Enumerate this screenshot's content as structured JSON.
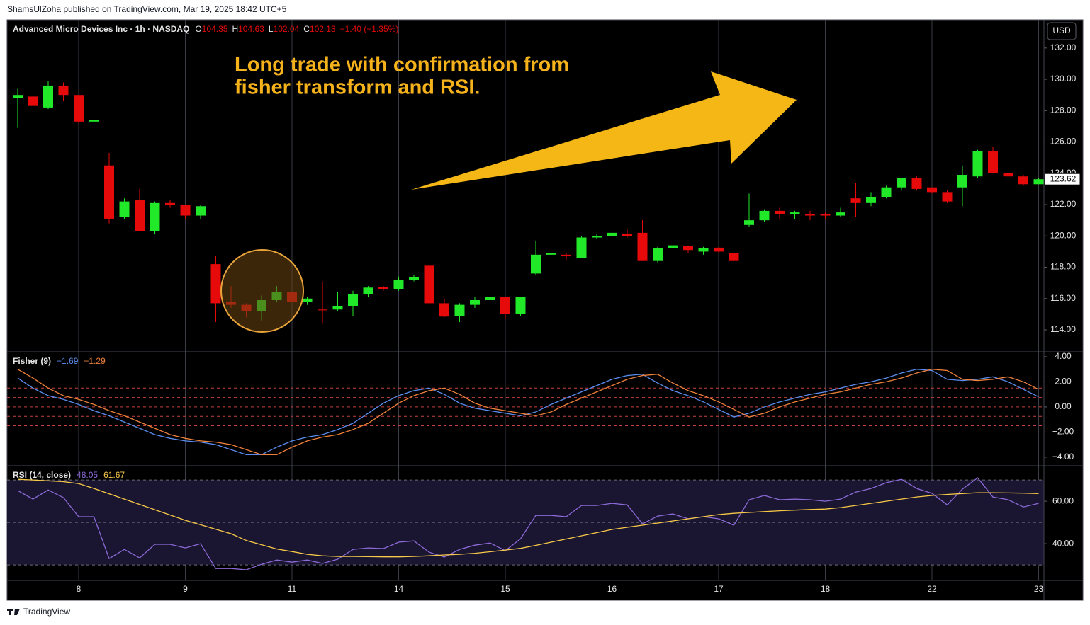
{
  "header": {
    "publisher": "ShamsUlZoha published on TradingView.com, Mar 19, 2025 18:42 UTC+5"
  },
  "footer": {
    "brand": "TradingView"
  },
  "annotation": {
    "lines": [
      "Long trade with confirmation from",
      "fisher transform and RSI."
    ],
    "color": "#f5b21b"
  },
  "chart_data": [
    {
      "type": "candlestick",
      "title": "Advanced Micro Devices Inc · 1h · NASDAQ",
      "quote": [
        {
          "label": "O",
          "value": 104.35
        },
        {
          "label": "H",
          "value": 104.63
        },
        {
          "label": "L",
          "value": 102.04
        },
        {
          "label": "C",
          "value": 102.13
        }
      ],
      "change": "−1.40 (−1.35%)",
      "currency": "USD",
      "up_color": "#22e82a",
      "down_color": "#e60a0a",
      "open": [
        128.8,
        128.9,
        128.2,
        129.6,
        129.0,
        127.3,
        124.5,
        121.2,
        122.3,
        120.3,
        122.1,
        122.0,
        121.3,
        118.2,
        115.8,
        115.6,
        115.2,
        115.9,
        116.4,
        115.8,
        115.3,
        115.3,
        115.5,
        116.3,
        116.75,
        116.6,
        117.2,
        118.1,
        115.7,
        114.9,
        115.6,
        115.9,
        116.1,
        115.0,
        117.6,
        118.8,
        118.8,
        118.6,
        119.9,
        120.0,
        120.15,
        120.2,
        118.4,
        119.2,
        119.35,
        119.0,
        119.25,
        118.9,
        120.7,
        121.0,
        121.6,
        121.4,
        121.4,
        121.4,
        121.3,
        122.4,
        122.1,
        122.5,
        123.1,
        123.7,
        123.1,
        122.8,
        123.1,
        123.8,
        125.4,
        124.0,
        123.8,
        123.3
      ],
      "high": [
        129.4,
        129.0,
        129.9,
        129.8,
        129.0,
        127.7,
        125.3,
        122.4,
        123.0,
        122.2,
        122.3,
        122.0,
        122.0,
        118.7,
        116.8,
        115.7,
        116.2,
        116.8,
        116.4,
        116.1,
        117.1,
        116.4,
        116.5,
        116.8,
        116.8,
        117.4,
        117.5,
        118.6,
        116.0,
        115.7,
        116.1,
        116.4,
        116.1,
        116.1,
        119.7,
        119.3,
        118.9,
        120.0,
        120.1,
        120.3,
        120.4,
        121.0,
        119.3,
        119.5,
        119.4,
        119.3,
        119.3,
        119.0,
        122.7,
        121.7,
        121.8,
        121.6,
        121.6,
        121.5,
        121.8,
        123.4,
        122.8,
        123.2,
        123.7,
        123.8,
        123.1,
        122.9,
        124.5,
        125.5,
        125.7,
        124.2,
        123.9,
        123.7
      ],
      "low": [
        126.9,
        128.2,
        128.1,
        128.6,
        127.2,
        126.9,
        120.8,
        121.1,
        120.3,
        120.1,
        121.8,
        121.1,
        121.1,
        114.5,
        115.4,
        114.8,
        114.6,
        115.8,
        115.8,
        115.6,
        114.4,
        115.2,
        114.9,
        116.1,
        116.5,
        116.5,
        117.1,
        115.6,
        114.8,
        114.5,
        115.4,
        115.8,
        114.7,
        114.9,
        117.5,
        118.6,
        118.5,
        118.6,
        119.8,
        119.9,
        119.9,
        118.4,
        118.3,
        118.9,
        118.9,
        118.8,
        118.9,
        118.3,
        120.6,
        120.9,
        121.1,
        121.1,
        121.0,
        121.1,
        121.2,
        121.2,
        121.9,
        122.4,
        122.9,
        122.9,
        122.7,
        122.1,
        121.9,
        123.7,
        124.0,
        123.4,
        123.2,
        123.3
      ],
      "close": [
        129.0,
        128.3,
        129.6,
        129.0,
        127.3,
        127.4,
        121.1,
        122.2,
        120.3,
        122.1,
        122.0,
        121.3,
        121.9,
        115.7,
        115.6,
        115.2,
        115.9,
        116.4,
        115.8,
        116.0,
        115.25,
        115.5,
        116.3,
        116.7,
        116.6,
        117.2,
        117.35,
        115.7,
        114.85,
        115.6,
        115.9,
        116.1,
        115.0,
        116.1,
        118.8,
        118.9,
        118.7,
        119.9,
        120.0,
        120.2,
        120.0,
        118.4,
        119.2,
        119.4,
        119.1,
        119.2,
        119.0,
        118.4,
        121.0,
        121.6,
        121.4,
        121.5,
        121.3,
        121.3,
        121.5,
        122.1,
        122.5,
        123.1,
        123.7,
        123.0,
        122.8,
        122.2,
        123.9,
        125.4,
        124.0,
        123.8,
        123.3,
        123.62
      ],
      "last_price": 123.62,
      "ylim": [
        112.6,
        133.8
      ],
      "yticks": [
        {
          "value": 114,
          "label": "114.00"
        },
        {
          "value": 116,
          "label": "116.00"
        },
        {
          "value": 118,
          "label": "118.00"
        },
        {
          "value": 120,
          "label": "120.00"
        },
        {
          "value": 122,
          "label": "122.00"
        },
        {
          "value": 124,
          "label": "124.00"
        },
        {
          "value": 126,
          "label": "126.00"
        },
        {
          "value": 128,
          "label": "128.00"
        },
        {
          "value": 130,
          "label": "130.00"
        },
        {
          "value": 132,
          "label": "132.00"
        }
      ],
      "xticks": [
        {
          "value": 4,
          "label": "8"
        },
        {
          "value": 11,
          "label": "9"
        },
        {
          "value": 18,
          "label": "11"
        },
        {
          "value": 25,
          "label": "14"
        },
        {
          "value": 32,
          "label": "15"
        },
        {
          "value": 39,
          "label": "16"
        },
        {
          "value": 46,
          "label": "17"
        },
        {
          "value": 53,
          "label": "18"
        },
        {
          "value": 60,
          "label": "22"
        },
        {
          "value": 67,
          "label": "23"
        }
      ],
      "grid": true
    },
    {
      "type": "line",
      "title": "Fisher (9)",
      "series": [
        {
          "color": "#5b8def",
          "legend_value": "−1.69",
          "values": [
            2.3,
            1.5,
            0.9,
            0.6,
            0.2,
            -0.3,
            -0.7,
            -1.2,
            -1.7,
            -2.2,
            -2.5,
            -2.7,
            -2.8,
            -3.0,
            -3.4,
            -3.8,
            -3.8,
            -3.2,
            -2.7,
            -2.4,
            -2.2,
            -1.8,
            -1.3,
            -0.5,
            0.3,
            0.9,
            1.3,
            1.5,
            1.0,
            0.3,
            -0.1,
            -0.3,
            -0.5,
            -0.7,
            -0.4,
            0.2,
            0.7,
            1.2,
            1.7,
            2.2,
            2.5,
            2.6,
            1.9,
            1.3,
            0.9,
            0.4,
            -0.2,
            -0.8,
            -0.5,
            0.0,
            0.4,
            0.7,
            1.0,
            1.2,
            1.5,
            1.8,
            2.0,
            2.3,
            2.7,
            3.0,
            2.9,
            2.2,
            2.1,
            2.2,
            2.4,
            2.0,
            1.4,
            0.8
          ]
        },
        {
          "color": "#f0813a",
          "legend_value": "−1.29",
          "values": [
            3.0,
            2.3,
            1.5,
            0.9,
            0.6,
            0.2,
            -0.3,
            -0.7,
            -1.2,
            -1.7,
            -2.2,
            -2.5,
            -2.7,
            -2.8,
            -3.0,
            -3.4,
            -3.8,
            -3.8,
            -3.2,
            -2.7,
            -2.4,
            -2.2,
            -1.8,
            -1.3,
            -0.5,
            0.3,
            0.9,
            1.3,
            1.5,
            1.0,
            0.3,
            -0.1,
            -0.3,
            -0.5,
            -0.7,
            -0.4,
            0.2,
            0.7,
            1.2,
            1.7,
            2.2,
            2.5,
            2.6,
            1.9,
            1.3,
            0.9,
            0.4,
            -0.2,
            -0.8,
            -0.5,
            0.0,
            0.4,
            0.7,
            1.0,
            1.2,
            1.5,
            1.8,
            2.0,
            2.3,
            2.7,
            3.0,
            2.9,
            2.2,
            2.1,
            2.2,
            2.4,
            2.0,
            1.4
          ]
        }
      ],
      "levels": [
        1.5,
        0.75,
        0,
        -0.75,
        -1.5
      ],
      "level_color": "#c8403f",
      "ylim": [
        -4.68,
        4.39
      ],
      "yticks": [
        {
          "value": 4,
          "label": "4.00"
        },
        {
          "value": 2,
          "label": "2.00"
        },
        {
          "value": 0,
          "label": "0.00"
        },
        {
          "value": -2,
          "label": "−2.00"
        },
        {
          "value": -4,
          "label": "−4.00"
        }
      ]
    },
    {
      "type": "line",
      "title": "RSI (14, close)",
      "series": [
        {
          "color": "#8c6ad8",
          "legend_value": "48.05",
          "values": [
            65,
            61,
            65.3,
            61.7,
            52.7,
            52.7,
            33,
            37.3,
            33.3,
            39.7,
            39.7,
            38,
            40,
            28.3,
            28.3,
            27.7,
            30.3,
            32.3,
            31.3,
            32.3,
            30.7,
            32.7,
            37.3,
            38,
            37.7,
            40.7,
            41.3,
            36,
            33.7,
            37.3,
            39.3,
            40.3,
            36.7,
            42.3,
            53.3,
            53.3,
            52.7,
            58,
            58,
            59,
            58.3,
            49.3,
            53,
            54,
            51.7,
            52.7,
            51.7,
            48.7,
            60.7,
            62.7,
            60.7,
            61,
            60.7,
            60,
            61,
            64.3,
            66,
            68.7,
            70.3,
            66,
            63.7,
            58.3,
            65.7,
            71,
            62,
            60.7,
            57.3,
            59
          ]
        },
        {
          "color": "#f7c948",
          "legend_value": "61.67",
          "values": [
            70.3,
            70.0,
            69.6,
            69.2,
            68.3,
            66.0,
            63.5,
            61.0,
            58.5,
            56.0,
            53.5,
            51.0,
            48.9,
            46.8,
            44.7,
            41.5,
            39.5,
            37.5,
            36.3,
            35.0,
            34.3,
            34.0,
            34.0,
            33.9,
            33.8,
            33.8,
            34.0,
            34.3,
            34.7,
            35.0,
            35.5,
            36.2,
            37.0,
            37.8,
            39.2,
            40.7,
            42.2,
            43.7,
            45.2,
            46.7,
            47.7,
            48.7,
            49.7,
            50.7,
            51.7,
            52.7,
            53.7,
            54.3,
            54.7,
            55.1,
            55.5,
            55.8,
            56.1,
            56.3,
            57.0,
            58.0,
            59.0,
            60.0,
            61.0,
            62.0,
            62.7,
            63.2,
            63.6,
            64.0,
            64.0,
            63.9,
            63.8,
            63.6
          ]
        }
      ],
      "levels": [
        70,
        50,
        30
      ],
      "level_color": "#6a6d78",
      "band_color": "#1a1530",
      "ylim": [
        22.7,
        76.7
      ],
      "yticks": [
        {
          "value": 60,
          "label": "60.00"
        },
        {
          "value": 40,
          "label": "40.00"
        }
      ]
    }
  ]
}
